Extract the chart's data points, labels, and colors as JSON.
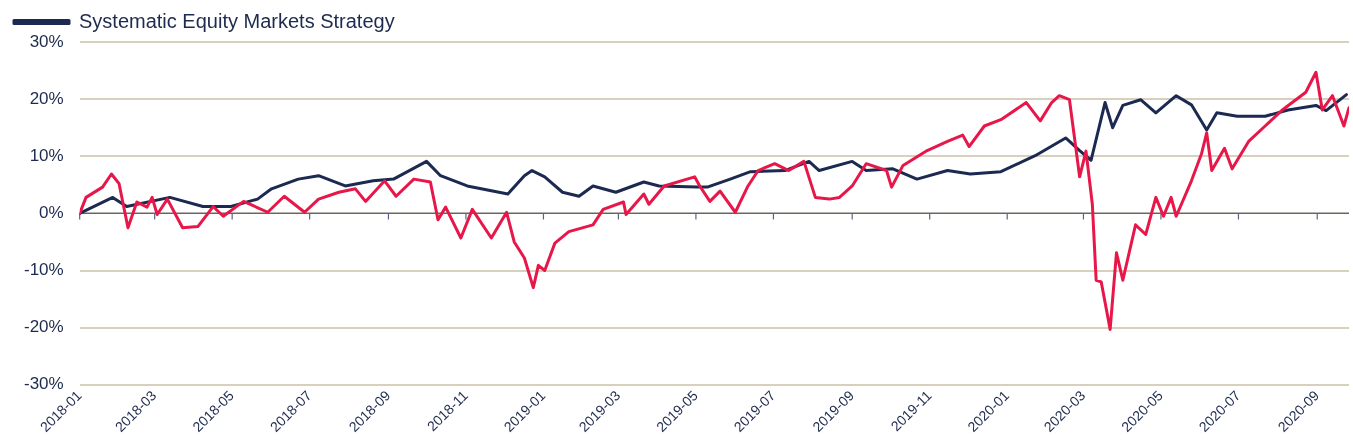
{
  "chart_data": {
    "type": "line",
    "xlim": [
      "2018-01-01",
      "2020-09-26"
    ],
    "xticks": [
      "2018-01",
      "2018-03",
      "2018-05",
      "2018-07",
      "2018-09",
      "2018-11",
      "2019-01",
      "2019-03",
      "2019-05",
      "2019-07",
      "2019-09",
      "2019-11",
      "2020-01",
      "2020-03",
      "2020-05",
      "2020-07",
      "2020-09"
    ],
    "ylim": [
      -30,
      30
    ],
    "yticks": [
      {
        "value": -30,
        "label": "-30%"
      },
      {
        "value": -20,
        "label": "-20%"
      },
      {
        "value": -10,
        "label": "-10%"
      },
      {
        "value": 0,
        "label": "0%"
      },
      {
        "value": 10,
        "label": "10%"
      },
      {
        "value": 20,
        "label": "20%"
      },
      {
        "value": 30,
        "label": "30%"
      }
    ],
    "ref_lines": [
      {
        "axis": "y",
        "value": 0,
        "color": "#5a6486"
      }
    ],
    "grid": "y",
    "legend": "top left",
    "marker": "none",
    "line_style": "solid",
    "series": [
      {
        "name": "Systematic Equity Markets Strategy",
        "color": "#1c2951",
        "x": [
          "2018-01-01",
          "2018-01-27",
          "2018-02-07",
          "2018-03-13",
          "2018-04-08",
          "2018-04-30",
          "2018-05-21",
          "2018-06-01",
          "2018-06-22",
          "2018-07-08",
          "2018-07-29",
          "2018-08-20",
          "2018-09-05",
          "2018-10-01",
          "2018-10-12",
          "2018-11-02",
          "2018-12-04",
          "2018-12-17",
          "2018-12-23",
          "2019-01-02",
          "2019-01-16",
          "2019-01-29",
          "2019-02-09",
          "2019-02-27",
          "2019-03-21",
          "2019-04-02",
          "2019-05-02",
          "2019-05-10",
          "2019-05-28",
          "2019-06-13",
          "2019-07-10",
          "2019-07-29",
          "2019-08-06",
          "2019-09-01",
          "2019-09-12",
          "2019-10-03",
          "2019-10-22",
          "2019-11-15",
          "2019-12-03",
          "2019-12-27",
          "2020-01-23",
          "2020-02-16",
          "2020-02-27",
          "2020-03-07",
          "2020-03-18",
          "2020-03-24",
          "2020-04-01",
          "2020-04-15",
          "2020-04-27",
          "2020-05-13",
          "2020-05-25",
          "2020-06-06",
          "2020-06-14",
          "2020-06-30",
          "2020-07-22",
          "2020-08-09",
          "2020-08-31",
          "2020-09-08",
          "2020-09-24"
        ],
        "values": [
          0,
          2.8,
          1.2,
          2.8,
          1.2,
          1.2,
          2.5,
          4.3,
          6.0,
          6.6,
          4.8,
          5.7,
          6.0,
          9.1,
          6.6,
          4.8,
          3.4,
          6.6,
          7.5,
          6.4,
          3.7,
          3.0,
          4.8,
          3.7,
          5.5,
          4.8,
          4.6,
          4.6,
          6.0,
          7.3,
          7.5,
          9.1,
          7.5,
          9.1,
          7.5,
          7.8,
          6.0,
          7.5,
          6.9,
          7.3,
          10.1,
          13.2,
          11.0,
          9.3,
          19.4,
          15.0,
          18.9,
          19.9,
          17.6,
          20.6,
          19.0,
          14.6,
          17.6,
          17.0,
          17.0,
          18.1,
          18.9,
          18.0,
          20.8
        ]
      },
      {
        "color": "#e8174a",
        "x": [
          "2018-01-01",
          "2018-01-06",
          "2018-01-19",
          "2018-01-26",
          "2018-02-01",
          "2018-02-08",
          "2018-02-15",
          "2018-02-23",
          "2018-02-27",
          "2018-03-03",
          "2018-03-11",
          "2018-03-23",
          "2018-04-04",
          "2018-04-16",
          "2018-04-24",
          "2018-05-10",
          "2018-05-29",
          "2018-06-11",
          "2018-06-27",
          "2018-07-08",
          "2018-07-24",
          "2018-08-06",
          "2018-08-14",
          "2018-08-29",
          "2018-09-07",
          "2018-09-21",
          "2018-10-04",
          "2018-10-10",
          "2018-10-16",
          "2018-10-28",
          "2018-11-06",
          "2018-11-21",
          "2018-12-03",
          "2018-12-09",
          "2018-12-17",
          "2018-12-24",
          "2018-12-28",
          "2019-01-02",
          "2019-01-10",
          "2019-01-21",
          "2019-02-09",
          "2019-02-17",
          "2019-03-05",
          "2019-03-07",
          "2019-03-21",
          "2019-03-25",
          "2019-04-06",
          "2019-04-30",
          "2019-05-04",
          "2019-05-12",
          "2019-05-20",
          "2019-06-01",
          "2019-06-11",
          "2019-06-19",
          "2019-07-02",
          "2019-07-13",
          "2019-07-25",
          "2019-08-03",
          "2019-08-14",
          "2019-08-22",
          "2019-09-01",
          "2019-09-12",
          "2019-09-28",
          "2019-10-02",
          "2019-10-11",
          "2019-10-30",
          "2019-11-15",
          "2019-11-27",
          "2019-12-02",
          "2019-12-14",
          "2019-12-27",
          "2020-01-16",
          "2020-01-27",
          "2020-02-05",
          "2020-02-11",
          "2020-02-19",
          "2020-02-27",
          "2020-03-03",
          "2020-03-08",
          "2020-03-11",
          "2020-03-15",
          "2020-03-22",
          "2020-03-27",
          "2020-04-01",
          "2020-04-11",
          "2020-04-19",
          "2020-04-27",
          "2020-05-03",
          "2020-05-09",
          "2020-05-13",
          "2020-05-25",
          "2020-06-02",
          "2020-06-06",
          "2020-06-10",
          "2020-06-20",
          "2020-06-26",
          "2020-07-09",
          "2020-07-22",
          "2020-08-04",
          "2020-08-23",
          "2020-08-31",
          "2020-09-05",
          "2020-09-13",
          "2020-09-22",
          "2020-09-26"
        ],
        "values": [
          0,
          2.8,
          4.6,
          6.9,
          5.2,
          -2.5,
          2.0,
          1.1,
          2.8,
          -0.2,
          2.5,
          -2.5,
          -2.3,
          1.2,
          -0.5,
          2.1,
          0.2,
          3.0,
          0.2,
          2.5,
          3.7,
          4.3,
          2.1,
          5.7,
          3.0,
          6.0,
          5.5,
          -1.1,
          1.1,
          -4.3,
          0.7,
          -4.3,
          0.2,
          -5.0,
          -7.8,
          -13.0,
          -9.1,
          -10.0,
          -5.2,
          -3.2,
          -2.0,
          0.7,
          2.0,
          -0.2,
          3.4,
          1.6,
          4.8,
          6.4,
          4.8,
          2.1,
          3.9,
          0.2,
          4.8,
          7.5,
          8.7,
          7.5,
          9.1,
          2.8,
          2.5,
          2.8,
          4.8,
          8.7,
          7.5,
          4.6,
          8.4,
          11.0,
          12.6,
          13.7,
          11.7,
          15.3,
          16.4,
          19.4,
          16.2,
          19.4,
          20.6,
          19.9,
          6.4,
          10.9,
          1.6,
          -11.7,
          -12.0,
          -20.3,
          -6.9,
          -11.7,
          -2.0,
          -3.7,
          2.8,
          -0.5,
          2.8,
          -0.5,
          5.7,
          10.5,
          14.1,
          7.5,
          11.4,
          7.8,
          12.6,
          15.3,
          18.0,
          21.2,
          24.7,
          18.1,
          20.6,
          15.3,
          18.5
        ]
      }
    ]
  }
}
